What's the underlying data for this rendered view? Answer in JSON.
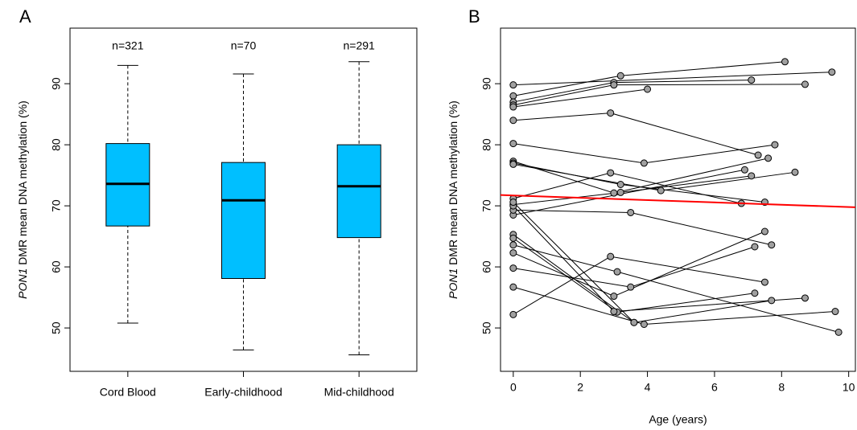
{
  "chart_data": [
    {
      "type": "box",
      "panel": "A",
      "ylabel_gene": "PON1",
      "ylabel_rest": "DMR mean DNA methylation (%)",
      "categories": [
        "Cord Blood",
        "Early-childhood",
        "Mid-childhood"
      ],
      "annotations": [
        "n=321",
        "n=70",
        "n=291"
      ],
      "color": "#00bfff",
      "boxes": [
        {
          "whisker_low": 50.8,
          "q1": 66.7,
          "median": 73.6,
          "q3": 80.2,
          "whisker_high": 93.0
        },
        {
          "whisker_low": 46.4,
          "q1": 58.1,
          "median": 70.9,
          "q3": 77.1,
          "whisker_high": 91.6
        },
        {
          "whisker_low": 45.6,
          "q1": 64.8,
          "median": 73.2,
          "q3": 80.0,
          "whisker_high": 93.6
        }
      ],
      "ylim": [
        42.9,
        99.1
      ],
      "yticks": [
        50,
        60,
        70,
        80,
        90
      ]
    },
    {
      "type": "line",
      "panel": "B",
      "ylabel_gene": "PON1",
      "ylabel_rest": "DMR mean DNA methylation (%)",
      "xlabel": "Age (years)",
      "xlim": [
        -0.38,
        10.2
      ],
      "xticks": [
        0,
        2,
        4,
        6,
        8,
        10
      ],
      "ylim": [
        42.9,
        99.1
      ],
      "yticks": [
        50,
        60,
        70,
        80,
        90
      ],
      "color": "#000000",
      "marker_color": "#a0a0a0",
      "trend": {
        "color": "#ff0000",
        "intercept": 71.7,
        "slope": -0.19
      },
      "series": [
        {
          "x": [
            0,
            9.5
          ],
          "values": [
            89.8,
            91.9
          ]
        },
        {
          "x": [
            0,
            3.2,
            8.1
          ],
          "values": [
            88.0,
            91.3,
            93.6
          ]
        },
        {
          "x": [
            0,
            3.0,
            7.1
          ],
          "values": [
            87.0,
            90.2,
            90.6
          ]
        },
        {
          "x": [
            0,
            3.0,
            8.7
          ],
          "values": [
            86.5,
            89.8,
            89.9
          ]
        },
        {
          "x": [
            0,
            4.0
          ],
          "values": [
            86.2,
            89.1
          ]
        },
        {
          "x": [
            0,
            2.9,
            7.3
          ],
          "values": [
            84.0,
            85.2,
            78.3
          ]
        },
        {
          "x": [
            0,
            3.9,
            7.8
          ],
          "values": [
            80.2,
            77.0,
            80.0
          ]
        },
        {
          "x": [
            0,
            3.0,
            7.6
          ],
          "values": [
            77.3,
            72.1,
            77.8
          ]
        },
        {
          "x": [
            0,
            3.2,
            7.5
          ],
          "values": [
            77.0,
            73.5,
            70.6
          ]
        },
        {
          "x": [
            0,
            4.4,
            8.4
          ],
          "values": [
            76.8,
            72.5,
            75.5
          ]
        },
        {
          "x": [
            0,
            2.9,
            6.8
          ],
          "values": [
            71.2,
            75.4,
            70.4
          ]
        },
        {
          "x": [
            0,
            3.2,
            7.1
          ],
          "values": [
            70.2,
            72.2,
            74.9
          ]
        },
        {
          "x": [
            0,
            6.9
          ],
          "values": [
            68.5,
            75.9
          ]
        },
        {
          "x": [
            0,
            3.5,
            7.7
          ],
          "values": [
            69.3,
            68.9,
            63.6
          ]
        },
        {
          "x": [
            0,
            3.6
          ],
          "values": [
            65.3,
            50.9
          ]
        },
        {
          "x": [
            0,
            3.1,
            7.2
          ],
          "values": [
            64.7,
            52.6,
            55.7
          ]
        },
        {
          "x": [
            0,
            3.1,
            9.7
          ],
          "values": [
            63.6,
            59.2,
            49.3
          ]
        },
        {
          "x": [
            0,
            3.0,
            7.5
          ],
          "values": [
            62.3,
            55.2,
            65.8
          ]
        },
        {
          "x": [
            0,
            3.5,
            7.2
          ],
          "values": [
            59.8,
            56.7,
            63.3
          ]
        },
        {
          "x": [
            0,
            3.9,
            9.6
          ],
          "values": [
            56.7,
            50.6,
            52.7
          ]
        },
        {
          "x": [
            0,
            2.9,
            7.5
          ],
          "values": [
            52.2,
            61.7,
            57.5
          ]
        },
        {
          "x": [
            0,
            3.0,
            8.7
          ],
          "values": [
            70.0,
            52.7,
            54.9
          ]
        },
        {
          "x": [
            0,
            3.6,
            7.7
          ],
          "values": [
            70.6,
            50.9,
            54.5
          ]
        }
      ]
    }
  ]
}
